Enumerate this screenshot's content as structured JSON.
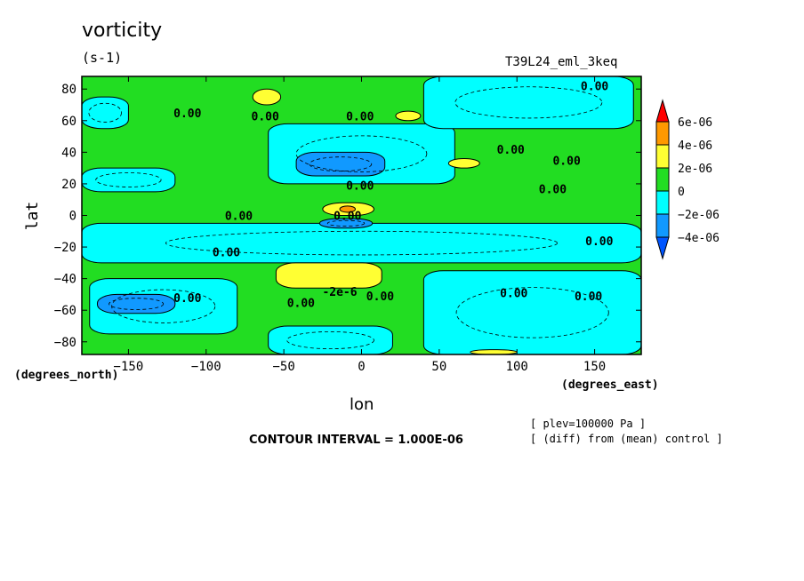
{
  "chart_data": {
    "type": "heatmap",
    "title": "vorticity",
    "units": "(s-1)",
    "dataset": "T39L24_eml_3keq",
    "xlabel": "lon",
    "ylabel": "lat",
    "x_unit": "(degrees_east)",
    "y_unit": "(degrees_north)",
    "xlim": [
      -180,
      180
    ],
    "ylim": [
      -88,
      88
    ],
    "x_ticks": [
      -150,
      -100,
      -50,
      0,
      50,
      100,
      150
    ],
    "y_ticks": [
      80,
      60,
      40,
      20,
      0,
      -20,
      -40,
      -60,
      -80
    ],
    "contour_interval": "CONTOUR INTERVAL = 1.000E-06",
    "level_note": "[ plev=100000 Pa ]",
    "diff_note": "[ (diff) from (mean) control ]",
    "colorbar": {
      "levels": [
        "6e-06",
        "4e-06",
        "2e-06",
        "0",
        "-2e-06",
        "-4e-06"
      ],
      "colors": {
        "above_6e-06": "#ff0000",
        "4e-06_to_6e-06": "#ff9900",
        "2e-06_to_4e-06": "#ffff33",
        "0_to_2e-06": "#22dd22",
        "-2e-06_to_0": "#00ffff",
        "-4e-06_to_-2e-06": "#1199ff",
        "below_-4e-06": "#0055ff"
      }
    },
    "contour_labels": [
      {
        "lon": 150,
        "lat": 82,
        "text": "0.00"
      },
      {
        "lon": -112,
        "lat": 65,
        "text": "0.00"
      },
      {
        "lon": -62,
        "lat": 63,
        "text": "0.00"
      },
      {
        "lon": -1,
        "lat": 63,
        "text": "0.00"
      },
      {
        "lon": 96,
        "lat": 42,
        "text": "0.00"
      },
      {
        "lon": 132,
        "lat": 35,
        "text": "0.00"
      },
      {
        "lon": 123,
        "lat": 17,
        "text": "0.00"
      },
      {
        "lon": -1,
        "lat": 19,
        "text": "0.00"
      },
      {
        "lon": -79,
        "lat": 0,
        "text": "0.00"
      },
      {
        "lon": -9,
        "lat": 0,
        "text": "0.00"
      },
      {
        "lon": 153,
        "lat": -16,
        "text": "0.00"
      },
      {
        "lon": -87,
        "lat": -23,
        "text": "0.00"
      },
      {
        "lon": -112,
        "lat": -52,
        "text": "0.00"
      },
      {
        "lon": -14,
        "lat": -48,
        "text": "-2e-6"
      },
      {
        "lon": 12,
        "lat": -51,
        "text": "0.00"
      },
      {
        "lon": -39,
        "lat": -55,
        "text": "0.00"
      },
      {
        "lon": 98,
        "lat": -49,
        "text": "0.00"
      },
      {
        "lon": 146,
        "lat": -51,
        "text": "0.00"
      }
    ],
    "regions": [
      {
        "class": "0_to_2e-06",
        "lon_range": [
          -180,
          180
        ],
        "lat_range": [
          -88,
          88
        ],
        "note": "background"
      },
      {
        "class": "-2e-06_to_0",
        "lon_range": [
          -180,
          -150
        ],
        "lat_range": [
          55,
          75
        ]
      },
      {
        "class": "-2e-06_to_0",
        "lon_range": [
          -60,
          60
        ],
        "lat_range": [
          20,
          58
        ]
      },
      {
        "class": "-4e-06_to_-2e-06",
        "lon_range": [
          -42,
          15
        ],
        "lat_range": [
          25,
          40
        ]
      },
      {
        "class": "-2e-06_to_0",
        "lon_range": [
          40,
          175
        ],
        "lat_range": [
          55,
          88
        ]
      },
      {
        "class": "-2e-06_to_0",
        "lon_range": [
          -180,
          180
        ],
        "lat_range": [
          -30,
          -5
        ]
      },
      {
        "class": "-2e-06_to_0",
        "lon_range": [
          -180,
          -120
        ],
        "lat_range": [
          15,
          30
        ]
      },
      {
        "class": "2e-06_to_4e-06",
        "lon_range": [
          -70,
          -52
        ],
        "lat_range": [
          70,
          80
        ]
      },
      {
        "class": "2e-06_to_4e-06",
        "lon_range": [
          22,
          38
        ],
        "lat_range": [
          60,
          66
        ]
      },
      {
        "class": "2e-06_to_4e-06",
        "lon_range": [
          56,
          76
        ],
        "lat_range": [
          30,
          36
        ]
      },
      {
        "class": "2e-06_to_4e-06",
        "lon_range": [
          -55,
          13
        ],
        "lat_range": [
          -46,
          -30
        ]
      },
      {
        "class": "2e-06_to_4e-06",
        "lon_range": [
          -25,
          8
        ],
        "lat_range": [
          0,
          8
        ]
      },
      {
        "class": "4e-06_to_6e-06",
        "lon_range": [
          -14,
          -4
        ],
        "lat_range": [
          2,
          6
        ]
      },
      {
        "class": "-4e-06_to_-2e-06",
        "lon_range": [
          -27,
          7
        ],
        "lat_range": [
          -8,
          -2
        ]
      },
      {
        "class": "-2e-06_to_0",
        "lon_range": [
          -175,
          -80
        ],
        "lat_range": [
          -75,
          -40
        ]
      },
      {
        "class": "-4e-06_to_-2e-06",
        "lon_range": [
          -170,
          -120
        ],
        "lat_range": [
          -62,
          -50
        ]
      },
      {
        "class": "-2e-06_to_0",
        "lon_range": [
          40,
          180
        ],
        "lat_range": [
          -88,
          -35
        ]
      },
      {
        "class": "-2e-06_to_0",
        "lon_range": [
          -60,
          20
        ],
        "lat_range": [
          -88,
          -70
        ]
      },
      {
        "class": "2e-06_to_4e-06",
        "lon_range": [
          70,
          100
        ],
        "lat_range": [
          -88,
          -85
        ]
      }
    ]
  }
}
